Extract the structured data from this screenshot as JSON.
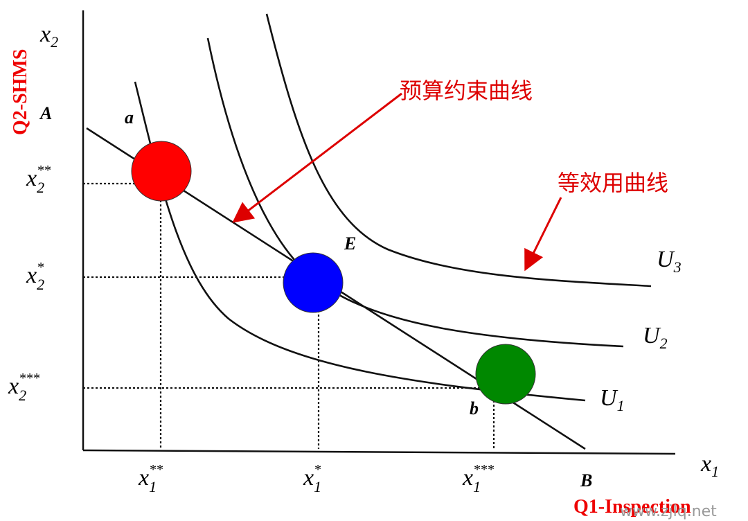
{
  "axes": {
    "y_label": {
      "base": "x",
      "sub": "2"
    },
    "x_label": {
      "base": "x",
      "sub": "1"
    },
    "y_title": "Q2-SHMS",
    "x_title": "Q1-Inspection",
    "y_intercept": "A",
    "x_intercept": "B"
  },
  "points": {
    "a": "a",
    "E": "E",
    "b": "b"
  },
  "y_ticks": [
    {
      "base": "x",
      "sub": "2",
      "sup": "**"
    },
    {
      "base": "x",
      "sub": "2",
      "sup": "*"
    },
    {
      "base": "x",
      "sub": "2",
      "sup": "***"
    }
  ],
  "x_ticks": [
    {
      "base": "x",
      "sub": "1",
      "sup": "**"
    },
    {
      "base": "x",
      "sub": "1",
      "sup": "*"
    },
    {
      "base": "x",
      "sub": "1",
      "sup": "***"
    }
  ],
  "curves": [
    {
      "base": "U",
      "sub": "3"
    },
    {
      "base": "U",
      "sub": "2"
    },
    {
      "base": "U",
      "sub": "1"
    }
  ],
  "annotations": {
    "budget": "预算约束曲线",
    "utility": "等效用曲线"
  },
  "watermark": "www.zjlq.net"
}
